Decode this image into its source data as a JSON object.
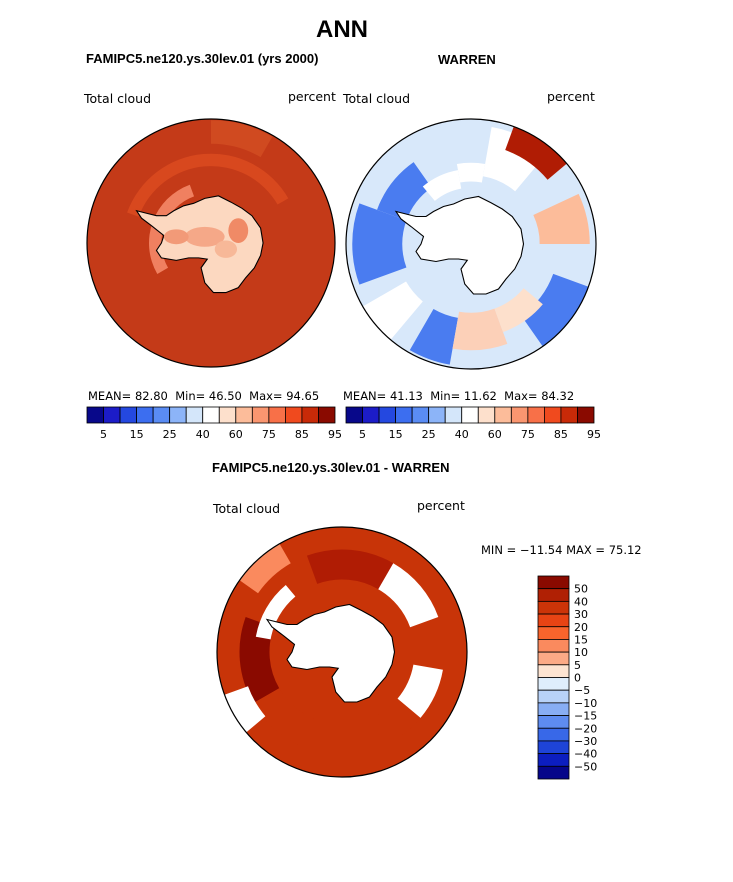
{
  "title": "ANN",
  "colors": {
    "abs": [
      "#08088a",
      "#1c1cc8",
      "#2448e0",
      "#3c6ef0",
      "#5a8cf4",
      "#8cb4f8",
      "#d4e6fa",
      "#ffffff",
      "#fde0cc",
      "#fcbc9a",
      "#fa9670",
      "#f87048",
      "#f04a1e",
      "#c82a08",
      "#8a0a00"
    ],
    "diff": [
      "#8a0a00",
      "#b02004",
      "#cc3408",
      "#e84414",
      "#f8642c",
      "#fa8a5e",
      "#fcaa86",
      "#fde4d2",
      "#dfeefc",
      "#b8d2f8",
      "#88aef4",
      "#5e8cf0",
      "#3868e8",
      "#1e44d8",
      "#0c1ec0",
      "#06068a"
    ]
  },
  "panels": {
    "left": {
      "subtitle": "FAMIPC5.ne120.ys.30lev.01 (yrs 2000)",
      "left_label": "Total cloud",
      "right_label": "percent",
      "stats": {
        "mean_label": "MEAN=",
        "mean": "82.80",
        "min_label": "Min=",
        "min": "46.50",
        "max_label": "Max=",
        "max": "94.65"
      }
    },
    "right": {
      "subtitle": "WARREN",
      "left_label": "Total cloud",
      "right_label": "percent",
      "stats": {
        "mean_label": "MEAN=",
        "mean": "41.13",
        "min_label": "Min=",
        "min": "11.62",
        "max_label": "Max=",
        "max": "84.32"
      }
    },
    "bottom": {
      "subtitle": "FAMIPC5.ne120.ys.30lev.01 - WARREN",
      "left_label": "Total cloud",
      "right_label": "percent",
      "minmax": "MIN = −11.54 MAX =  75.12"
    }
  },
  "chart_data": [
    {
      "type": "heatmap",
      "projection": "south polar stereographic",
      "field": "Total cloud",
      "units": "percent",
      "colorbar_ticks": [
        "5",
        "15",
        "25",
        "40",
        "60",
        "75",
        "85",
        "95"
      ],
      "colorbar_bins": 15,
      "stats": {
        "mean": 82.8,
        "min": 46.5,
        "max": 94.65
      }
    },
    {
      "type": "heatmap",
      "projection": "south polar stereographic",
      "field": "Total cloud",
      "units": "percent",
      "colorbar_ticks": [
        "5",
        "15",
        "25",
        "40",
        "60",
        "75",
        "85",
        "95"
      ],
      "colorbar_bins": 15,
      "stats": {
        "mean": 41.13,
        "min": 11.62,
        "max": 84.32
      }
    },
    {
      "type": "heatmap",
      "projection": "south polar stereographic",
      "field": "Total cloud",
      "units": "percent",
      "colorbar_ticks": [
        "50",
        "40",
        "30",
        "20",
        "15",
        "10",
        "5",
        "0",
        "−5",
        "−10",
        "−15",
        "−20",
        "−30",
        "−40",
        "−50"
      ],
      "colorbar_bins": 16,
      "stats": {
        "min": -11.54,
        "max": 75.12
      }
    }
  ]
}
